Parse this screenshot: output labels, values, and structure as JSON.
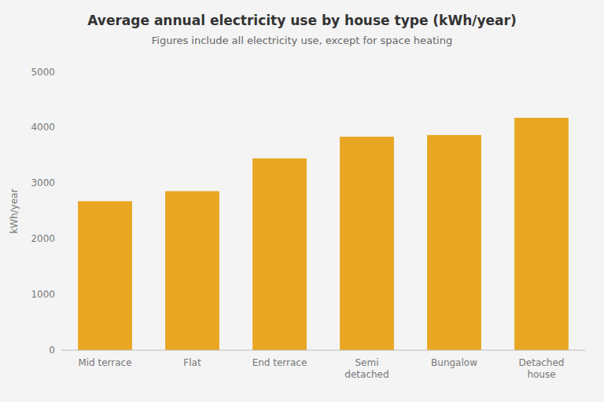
{
  "chart_data": {
    "type": "bar",
    "title": "Average annual electricity use by house type (kWh/year)",
    "subtitle": "Figures include all electricity use, except for space heating",
    "categories": [
      "Mid terrace",
      "Flat",
      "End terrace",
      "Semi\ndetached",
      "Bungalow",
      "Detached\nhouse"
    ],
    "values": [
      2680,
      2860,
      3450,
      3840,
      3870,
      4180
    ],
    "color": "#E8A622",
    "ylabel": "kWh/year",
    "ylim": [
      0,
      5000
    ],
    "yticks": [
      0,
      1000,
      2000,
      3000,
      4000,
      5000
    ],
    "grid": false
  }
}
